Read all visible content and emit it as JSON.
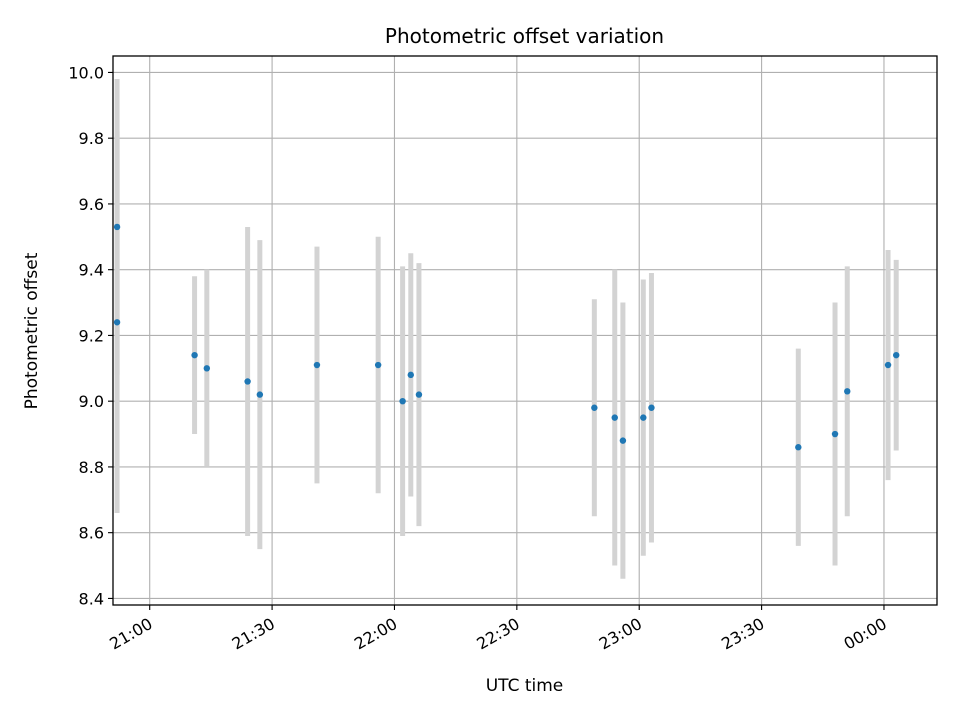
{
  "chart_data": {
    "type": "scatter",
    "title": "Photometric offset variation",
    "xlabel": "UTC time",
    "ylabel": "Photometric offset",
    "x_axis_kind": "time",
    "x_ticks": [
      "21:00",
      "21:30",
      "22:00",
      "22:30",
      "23:00",
      "23:30",
      "00:00"
    ],
    "y_ticks": [
      "8.4",
      "8.6",
      "8.8",
      "9.0",
      "9.2",
      "9.4",
      "9.6",
      "9.8",
      "10.0"
    ],
    "xlim": [
      "20:51",
      "00:13"
    ],
    "ylim": [
      8.38,
      10.05
    ],
    "grid": true,
    "marker_color": "#1f77b4",
    "errorbar_color": "#d3d3d3",
    "series": [
      {
        "points": [
          {
            "time": "20:52",
            "y": 9.53,
            "err": 0.45
          },
          {
            "time": "20:52",
            "y": 9.24,
            "err": 0.58
          },
          {
            "time": "21:11",
            "y": 9.14,
            "err": 0.24
          },
          {
            "time": "21:14",
            "y": 9.1,
            "err": 0.3
          },
          {
            "time": "21:24",
            "y": 9.06,
            "err": 0.47
          },
          {
            "time": "21:27",
            "y": 9.02,
            "err": 0.47
          },
          {
            "time": "21:41",
            "y": 9.11,
            "err": 0.36
          },
          {
            "time": "21:56",
            "y": 9.11,
            "err": 0.39
          },
          {
            "time": "22:02",
            "y": 9.0,
            "err": 0.41
          },
          {
            "time": "22:04",
            "y": 9.08,
            "err": 0.37
          },
          {
            "time": "22:06",
            "y": 9.02,
            "err": 0.4
          },
          {
            "time": "22:49",
            "y": 8.98,
            "err": 0.33
          },
          {
            "time": "22:54",
            "y": 8.95,
            "err": 0.45
          },
          {
            "time": "22:56",
            "y": 8.88,
            "err": 0.42
          },
          {
            "time": "23:01",
            "y": 8.95,
            "err": 0.42
          },
          {
            "time": "23:03",
            "y": 8.98,
            "err": 0.41
          },
          {
            "time": "23:39",
            "y": 8.86,
            "err": 0.3
          },
          {
            "time": "23:48",
            "y": 8.9,
            "err": 0.4
          },
          {
            "time": "23:51",
            "y": 9.03,
            "err": 0.38
          },
          {
            "time": "00:01",
            "y": 9.11,
            "err": 0.35
          },
          {
            "time": "00:03",
            "y": 9.14,
            "err": 0.29
          }
        ]
      }
    ]
  }
}
